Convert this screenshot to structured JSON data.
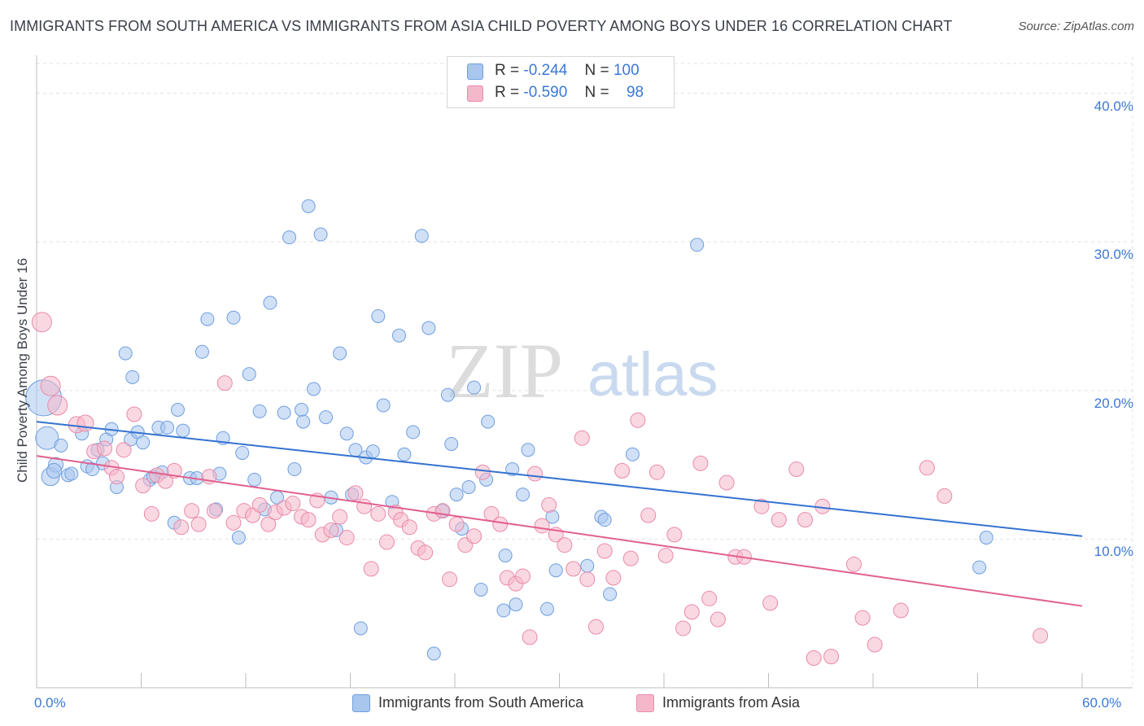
{
  "header": {
    "title": "IMMIGRANTS FROM SOUTH AMERICA VS IMMIGRANTS FROM ASIA CHILD POVERTY AMONG BOYS UNDER 16 CORRELATION CHART",
    "source": "Source: ZipAtlas.com"
  },
  "watermark": {
    "zip": "ZIP",
    "atlas": "atlas"
  },
  "legend": {
    "r_label": "R =",
    "n_label": "N =",
    "south_america": {
      "r": "-0.244",
      "n": "100"
    },
    "asia": {
      "r": "-0.590",
      "n": "98"
    }
  },
  "bottom_legend": {
    "south_america": "Immigrants from South America",
    "asia": "Immigrants from Asia"
  },
  "colors": {
    "blue_fill": "#a9c6ee",
    "blue_stroke": "#6f9fe0",
    "blue_line": "#3472d0",
    "pink_fill": "#f5b8cb",
    "pink_stroke": "#ea8aa8",
    "pink_line": "#e0608e",
    "axis_text": "#3b78d8",
    "grid": "#e3e3e3"
  },
  "chart_data": {
    "type": "scatter",
    "title": "IMMIGRANTS FROM SOUTH AMERICA VS IMMIGRANTS FROM ASIA CHILD POVERTY AMONG BOYS UNDER 16 CORRELATION CHART",
    "xlabel": "",
    "ylabel": "Child Poverty Among Boys Under 16",
    "xlim": [
      0,
      60
    ],
    "ylim": [
      0,
      42
    ],
    "x_tick_labels": {
      "min": "0.0%",
      "max": "60.0%"
    },
    "y_ticks": [
      10,
      20,
      30,
      40
    ],
    "y_tick_labels": [
      "10.0%",
      "20.0%",
      "30.0%",
      "40.0%"
    ],
    "grid": true,
    "legend_position": "top-center",
    "series": [
      {
        "name": "Immigrants from South America",
        "color": "blue",
        "trendline": {
          "x": [
            0,
            60
          ],
          "y": [
            17.9,
            10.2
          ]
        },
        "points": [
          [
            0.4,
            19.5,
            22
          ],
          [
            0.6,
            16.8,
            14
          ],
          [
            0.8,
            14.2,
            11
          ],
          [
            1.1,
            15.0,
            9
          ],
          [
            1.0,
            14.6,
            9
          ],
          [
            1.4,
            16.3,
            8
          ],
          [
            1.8,
            14.3,
            8
          ],
          [
            2.0,
            14.4,
            8
          ],
          [
            2.6,
            17.1,
            8
          ],
          [
            2.9,
            14.9,
            8
          ],
          [
            3.2,
            14.7,
            8
          ],
          [
            3.5,
            16.0,
            8
          ],
          [
            3.8,
            15.1,
            8
          ],
          [
            4.0,
            16.7,
            8
          ],
          [
            4.3,
            17.4,
            8
          ],
          [
            4.6,
            13.5,
            8
          ],
          [
            5.1,
            22.5,
            8
          ],
          [
            5.4,
            16.7,
            8
          ],
          [
            5.5,
            20.9,
            8
          ],
          [
            5.8,
            17.2,
            8
          ],
          [
            6.1,
            16.5,
            8
          ],
          [
            6.5,
            14.0,
            8
          ],
          [
            6.7,
            14.2,
            8
          ],
          [
            7.0,
            17.5,
            8
          ],
          [
            7.2,
            14.5,
            8
          ],
          [
            7.5,
            17.5,
            8
          ],
          [
            7.9,
            11.1,
            8
          ],
          [
            8.1,
            18.7,
            8
          ],
          [
            8.4,
            17.3,
            8
          ],
          [
            8.8,
            14.1,
            8
          ],
          [
            9.2,
            14.1,
            8
          ],
          [
            9.5,
            22.6,
            8
          ],
          [
            9.8,
            24.8,
            8
          ],
          [
            10.3,
            12.0,
            8
          ],
          [
            10.5,
            14.4,
            8
          ],
          [
            10.7,
            16.8,
            8
          ],
          [
            11.3,
            24.9,
            8
          ],
          [
            11.6,
            10.1,
            8
          ],
          [
            11.8,
            15.8,
            8
          ],
          [
            12.2,
            21.1,
            8
          ],
          [
            12.5,
            14.0,
            8
          ],
          [
            12.8,
            18.6,
            8
          ],
          [
            13.1,
            12.0,
            8
          ],
          [
            13.4,
            25.9,
            8
          ],
          [
            13.8,
            12.8,
            8
          ],
          [
            14.2,
            18.5,
            8
          ],
          [
            14.5,
            30.3,
            8
          ],
          [
            14.8,
            14.7,
            8
          ],
          [
            15.2,
            18.7,
            8
          ],
          [
            15.3,
            17.9,
            8
          ],
          [
            15.6,
            32.4,
            8
          ],
          [
            15.9,
            20.1,
            8
          ],
          [
            16.3,
            30.5,
            8
          ],
          [
            16.6,
            18.2,
            8
          ],
          [
            16.9,
            12.8,
            8
          ],
          [
            17.2,
            10.6,
            8
          ],
          [
            17.4,
            22.5,
            8
          ],
          [
            17.8,
            17.1,
            8
          ],
          [
            18.1,
            13.0,
            8
          ],
          [
            18.3,
            16.0,
            8
          ],
          [
            18.6,
            4.0,
            8
          ],
          [
            18.9,
            15.5,
            8
          ],
          [
            19.3,
            15.9,
            8
          ],
          [
            19.6,
            25.0,
            8
          ],
          [
            19.9,
            19.0,
            8
          ],
          [
            20.4,
            12.5,
            8
          ],
          [
            20.8,
            23.7,
            8
          ],
          [
            21.1,
            15.7,
            8
          ],
          [
            21.6,
            17.2,
            8
          ],
          [
            22.1,
            30.4,
            8
          ],
          [
            22.5,
            24.2,
            8
          ],
          [
            22.8,
            2.3,
            8
          ],
          [
            23.3,
            11.9,
            8
          ],
          [
            23.6,
            19.7,
            8
          ],
          [
            23.8,
            16.4,
            8
          ],
          [
            24.1,
            13.0,
            8
          ],
          [
            24.4,
            10.7,
            8
          ],
          [
            24.8,
            13.5,
            8
          ],
          [
            25.1,
            20.2,
            8
          ],
          [
            25.5,
            6.6,
            8
          ],
          [
            25.8,
            14.0,
            8
          ],
          [
            25.9,
            17.9,
            8
          ],
          [
            26.9,
            8.9,
            8
          ],
          [
            26.8,
            5.2,
            8
          ],
          [
            27.3,
            14.7,
            8
          ],
          [
            27.5,
            5.6,
            8
          ],
          [
            27.9,
            13.0,
            8
          ],
          [
            28.2,
            16.0,
            8
          ],
          [
            29.3,
            5.3,
            8
          ],
          [
            29.6,
            11.5,
            8
          ],
          [
            29.8,
            7.9,
            8
          ],
          [
            31.6,
            8.2,
            8
          ],
          [
            32.4,
            11.5,
            8
          ],
          [
            32.6,
            11.3,
            8
          ],
          [
            32.9,
            6.3,
            8
          ],
          [
            34.2,
            15.7,
            8
          ],
          [
            37.9,
            29.8,
            8
          ],
          [
            54.5,
            10.1,
            8
          ],
          [
            54.1,
            8.1,
            8
          ]
        ]
      },
      {
        "name": "Immigrants from Asia",
        "color": "pink",
        "trendline": {
          "x": [
            0,
            60
          ],
          "y": [
            15.6,
            5.5
          ]
        },
        "points": [
          [
            0.3,
            24.6,
            12
          ],
          [
            0.8,
            20.3,
            12
          ],
          [
            1.2,
            19.0,
            12
          ],
          [
            2.3,
            17.7,
            10
          ],
          [
            2.8,
            17.8,
            10
          ],
          [
            3.3,
            15.9,
            9
          ],
          [
            3.9,
            16.1,
            9
          ],
          [
            4.3,
            14.8,
            9
          ],
          [
            4.6,
            14.2,
            9
          ],
          [
            5.0,
            16.0,
            9
          ],
          [
            5.6,
            18.4,
            9
          ],
          [
            6.1,
            13.6,
            9
          ],
          [
            6.6,
            11.7,
            9
          ],
          [
            6.9,
            14.3,
            9
          ],
          [
            7.4,
            13.9,
            9
          ],
          [
            7.9,
            14.6,
            9
          ],
          [
            8.3,
            10.8,
            9
          ],
          [
            8.9,
            11.9,
            9
          ],
          [
            9.3,
            11.0,
            9
          ],
          [
            9.9,
            14.2,
            9
          ],
          [
            10.2,
            11.9,
            9
          ],
          [
            10.8,
            20.5,
            9
          ],
          [
            11.3,
            11.1,
            9
          ],
          [
            11.9,
            11.9,
            9
          ],
          [
            12.4,
            11.6,
            9
          ],
          [
            12.8,
            12.3,
            9
          ],
          [
            13.3,
            11.0,
            9
          ],
          [
            13.7,
            11.8,
            9
          ],
          [
            14.2,
            12.1,
            9
          ],
          [
            14.7,
            12.4,
            9
          ],
          [
            15.2,
            11.5,
            9
          ],
          [
            15.6,
            11.3,
            9
          ],
          [
            16.1,
            12.6,
            9
          ],
          [
            16.4,
            10.3,
            9
          ],
          [
            16.9,
            10.6,
            9
          ],
          [
            17.4,
            11.5,
            9
          ],
          [
            17.8,
            10.1,
            9
          ],
          [
            18.3,
            13.1,
            9
          ],
          [
            18.8,
            12.2,
            9
          ],
          [
            19.2,
            8.0,
            9
          ],
          [
            19.6,
            11.7,
            9
          ],
          [
            20.1,
            9.8,
            9
          ],
          [
            20.6,
            11.8,
            9
          ],
          [
            20.9,
            11.3,
            9
          ],
          [
            21.4,
            10.8,
            9
          ],
          [
            21.9,
            9.4,
            9
          ],
          [
            22.3,
            9.1,
            9
          ],
          [
            22.8,
            11.7,
            9
          ],
          [
            23.3,
            11.9,
            9
          ],
          [
            23.7,
            7.3,
            9
          ],
          [
            24.1,
            11.0,
            9
          ],
          [
            24.6,
            9.6,
            9
          ],
          [
            25.1,
            10.2,
            9
          ],
          [
            25.6,
            14.5,
            9
          ],
          [
            26.1,
            11.7,
            9
          ],
          [
            26.6,
            11.0,
            9
          ],
          [
            27.0,
            7.4,
            9
          ],
          [
            27.5,
            7.0,
            9
          ],
          [
            27.9,
            7.5,
            9
          ],
          [
            28.3,
            3.4,
            9
          ],
          [
            28.6,
            14.4,
            9
          ],
          [
            29.0,
            10.9,
            9
          ],
          [
            29.4,
            12.3,
            9
          ],
          [
            29.8,
            10.3,
            9
          ],
          [
            30.3,
            9.6,
            9
          ],
          [
            30.8,
            8.0,
            9
          ],
          [
            31.3,
            16.8,
            9
          ],
          [
            31.6,
            7.3,
            9
          ],
          [
            32.1,
            4.1,
            9
          ],
          [
            32.6,
            9.2,
            9
          ],
          [
            33.1,
            7.4,
            9
          ],
          [
            33.6,
            14.6,
            9
          ],
          [
            34.1,
            8.7,
            9
          ],
          [
            34.5,
            18.0,
            9
          ],
          [
            35.1,
            11.6,
            9
          ],
          [
            35.6,
            14.5,
            9
          ],
          [
            36.1,
            8.9,
            9
          ],
          [
            36.6,
            10.3,
            9
          ],
          [
            37.1,
            4.0,
            9
          ],
          [
            37.6,
            5.1,
            9
          ],
          [
            38.1,
            15.1,
            9
          ],
          [
            38.6,
            6.0,
            9
          ],
          [
            39.1,
            4.6,
            9
          ],
          [
            39.6,
            13.8,
            9
          ],
          [
            40.1,
            8.8,
            9
          ],
          [
            40.6,
            8.8,
            9
          ],
          [
            41.6,
            12.2,
            9
          ],
          [
            42.1,
            5.7,
            9
          ],
          [
            42.6,
            11.3,
            9
          ],
          [
            43.6,
            14.7,
            9
          ],
          [
            44.1,
            11.3,
            9
          ],
          [
            45.1,
            12.2,
            9
          ],
          [
            44.6,
            2.0,
            9
          ],
          [
            45.6,
            2.1,
            9
          ],
          [
            46.9,
            8.3,
            9
          ],
          [
            47.4,
            4.7,
            9
          ],
          [
            48.1,
            2.9,
            9
          ],
          [
            49.6,
            5.2,
            9
          ],
          [
            51.1,
            14.8,
            9
          ],
          [
            52.1,
            12.9,
            9
          ],
          [
            57.6,
            3.5,
            9
          ]
        ]
      }
    ]
  }
}
